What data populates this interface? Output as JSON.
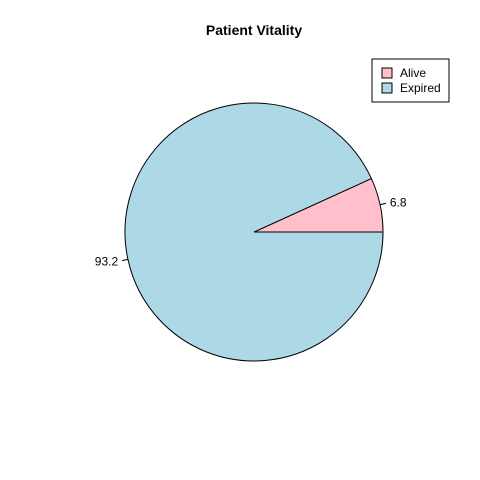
{
  "chart_data": {
    "type": "pie",
    "title": "Patient Vitality",
    "slices": [
      {
        "name": "Alive",
        "value": 6.8,
        "label": "6.8",
        "color": "#FFC0CB"
      },
      {
        "name": "Expired",
        "value": 93.2,
        "label": "93.2",
        "color": "#ADD8E6"
      }
    ],
    "legend": {
      "position": "top-right",
      "entries": [
        "Alive",
        "Expired"
      ]
    }
  }
}
